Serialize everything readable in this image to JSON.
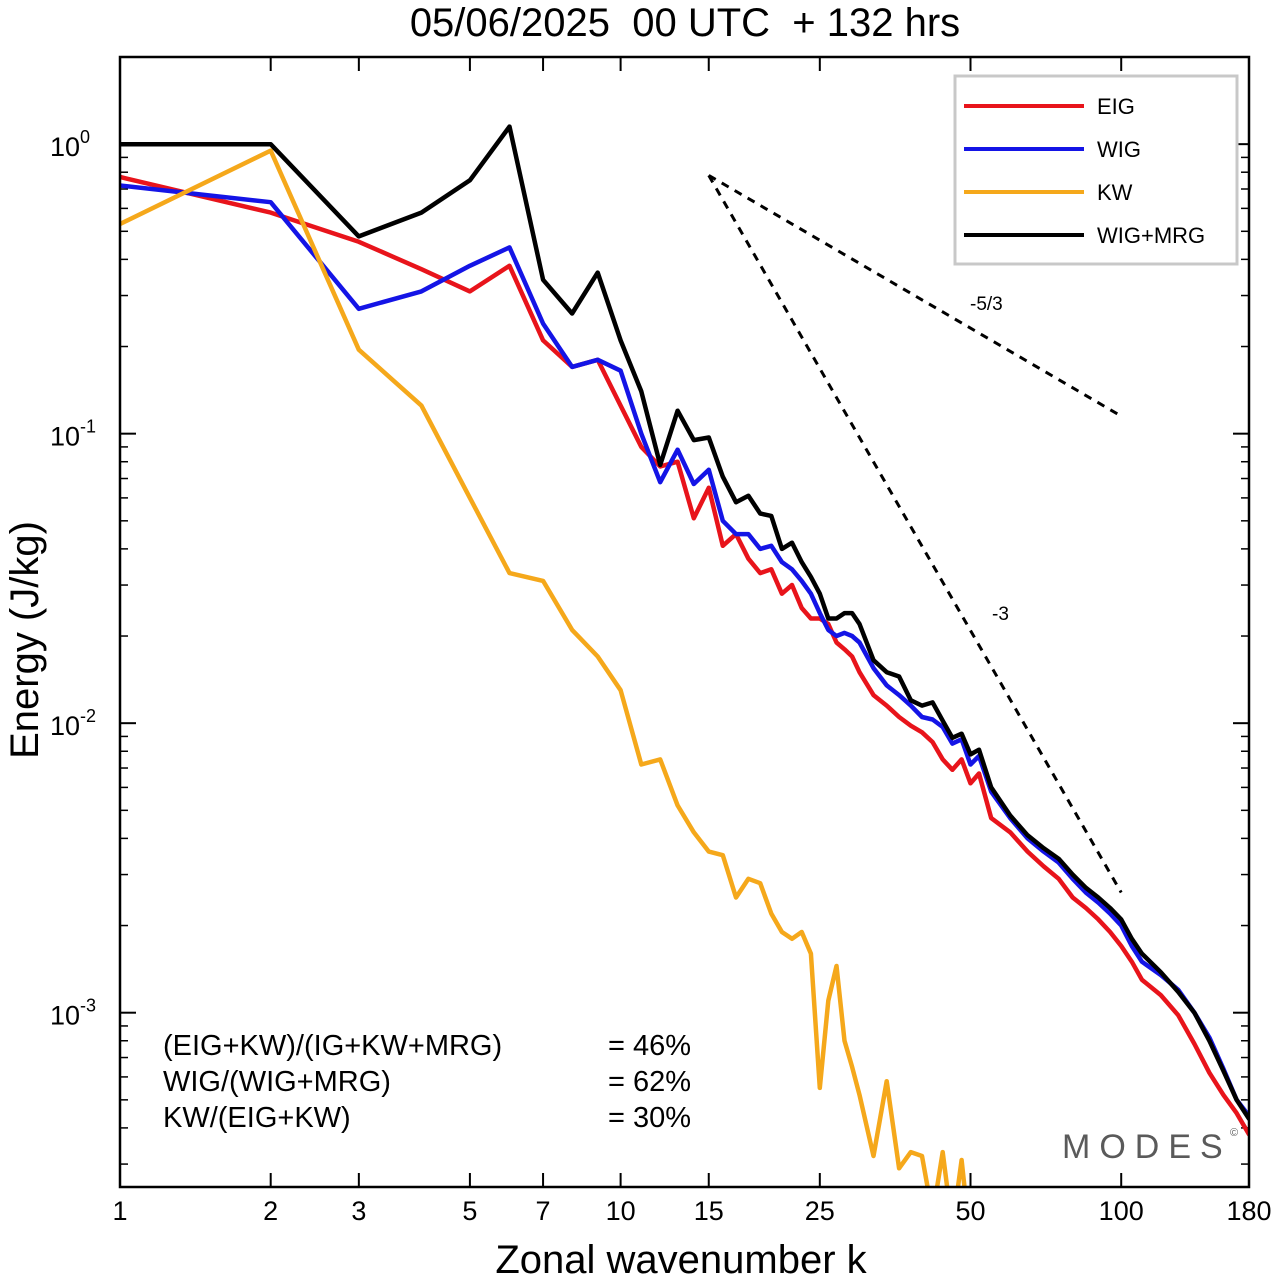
{
  "chart_data": {
    "type": "line",
    "title": "05/06/2025  00 UTC  + 132 hrs",
    "xlabel": "Zonal wavenumber k",
    "ylabel": "Energy (J/kg)",
    "x_scale": "log",
    "y_scale": "log",
    "xlim": [
      1,
      180
    ],
    "ylim": [
      0.00025,
      2
    ],
    "x_ticks": [
      1,
      2,
      3,
      5,
      7,
      10,
      15,
      25,
      50,
      100,
      180
    ],
    "x_tick_labels": [
      "1",
      "2",
      "3",
      "5",
      "7",
      "10",
      "15",
      "25",
      "50",
      "100",
      "180"
    ],
    "y_ticks": [
      {
        "value": 1,
        "base": "10",
        "exp": "0"
      },
      {
        "value": 0.1,
        "base": "10",
        "exp": "-1"
      },
      {
        "value": 0.01,
        "base": "10",
        "exp": "-2"
      },
      {
        "value": 0.001,
        "base": "10",
        "exp": "-3"
      }
    ],
    "grid": false,
    "legend_position": "top-right",
    "series": [
      {
        "name": "EIG",
        "color": "#e8141b",
        "points": [
          [
            1,
            0.77
          ],
          [
            2,
            0.58
          ],
          [
            3,
            0.46
          ],
          [
            4,
            0.37
          ],
          [
            5,
            0.31
          ],
          [
            6,
            0.38
          ],
          [
            7,
            0.21
          ],
          [
            8,
            0.17
          ],
          [
            9,
            0.18
          ],
          [
            10,
            0.125
          ],
          [
            11,
            0.09
          ],
          [
            12,
            0.077
          ],
          [
            13,
            0.08
          ],
          [
            14,
            0.051
          ],
          [
            15,
            0.065
          ],
          [
            16,
            0.041
          ],
          [
            17,
            0.045
          ],
          [
            18,
            0.037
          ],
          [
            19,
            0.033
          ],
          [
            20,
            0.034
          ],
          [
            21,
            0.028
          ],
          [
            22,
            0.03
          ],
          [
            23,
            0.025
          ],
          [
            24,
            0.023
          ],
          [
            25,
            0.023
          ],
          [
            26,
            0.022
          ],
          [
            27,
            0.019
          ],
          [
            28,
            0.018
          ],
          [
            29,
            0.017
          ],
          [
            30,
            0.015
          ],
          [
            32,
            0.0125
          ],
          [
            34,
            0.0115
          ],
          [
            36,
            0.0105
          ],
          [
            38,
            0.0098
          ],
          [
            40,
            0.0093
          ],
          [
            42,
            0.0086
          ],
          [
            44,
            0.0075
          ],
          [
            46,
            0.0069
          ],
          [
            48,
            0.0075
          ],
          [
            50,
            0.0062
          ],
          [
            52,
            0.0067
          ],
          [
            55,
            0.0047
          ],
          [
            60,
            0.0042
          ],
          [
            65,
            0.0036
          ],
          [
            70,
            0.0032
          ],
          [
            75,
            0.0029
          ],
          [
            80,
            0.0025
          ],
          [
            85,
            0.0023
          ],
          [
            90,
            0.0021
          ],
          [
            95,
            0.0019
          ],
          [
            100,
            0.0017
          ],
          [
            105,
            0.0015
          ],
          [
            110,
            0.0013
          ],
          [
            120,
            0.00115
          ],
          [
            130,
            0.00098
          ],
          [
            140,
            0.00078
          ],
          [
            150,
            0.00062
          ],
          [
            160,
            0.00052
          ],
          [
            170,
            0.00045
          ],
          [
            180,
            0.00038
          ]
        ]
      },
      {
        "name": "WIG",
        "color": "#1414e6",
        "points": [
          [
            1,
            0.72
          ],
          [
            2,
            0.63
          ],
          [
            3,
            0.27
          ],
          [
            4,
            0.31
          ],
          [
            5,
            0.38
          ],
          [
            6,
            0.44
          ],
          [
            7,
            0.24
          ],
          [
            8,
            0.17
          ],
          [
            9,
            0.18
          ],
          [
            10,
            0.165
          ],
          [
            11,
            0.1
          ],
          [
            12,
            0.068
          ],
          [
            13,
            0.088
          ],
          [
            14,
            0.067
          ],
          [
            15,
            0.075
          ],
          [
            16,
            0.05
          ],
          [
            17,
            0.045
          ],
          [
            18,
            0.045
          ],
          [
            19,
            0.04
          ],
          [
            20,
            0.041
          ],
          [
            21,
            0.036
          ],
          [
            22,
            0.034
          ],
          [
            23,
            0.031
          ],
          [
            24,
            0.028
          ],
          [
            25,
            0.024
          ],
          [
            26,
            0.021
          ],
          [
            27,
            0.02
          ],
          [
            28,
            0.0205
          ],
          [
            29,
            0.02
          ],
          [
            30,
            0.019
          ],
          [
            32,
            0.0155
          ],
          [
            34,
            0.0135
          ],
          [
            36,
            0.0125
          ],
          [
            38,
            0.0115
          ],
          [
            40,
            0.0105
          ],
          [
            42,
            0.0103
          ],
          [
            44,
            0.0097
          ],
          [
            46,
            0.0085
          ],
          [
            48,
            0.0088
          ],
          [
            50,
            0.0072
          ],
          [
            52,
            0.0077
          ],
          [
            55,
            0.0058
          ],
          [
            60,
            0.0047
          ],
          [
            65,
            0.004
          ],
          [
            70,
            0.0036
          ],
          [
            75,
            0.0033
          ],
          [
            80,
            0.0029
          ],
          [
            85,
            0.0026
          ],
          [
            90,
            0.0024
          ],
          [
            95,
            0.0022
          ],
          [
            100,
            0.002
          ],
          [
            105,
            0.0017
          ],
          [
            110,
            0.0015
          ],
          [
            120,
            0.00135
          ],
          [
            130,
            0.0012
          ],
          [
            140,
            0.001
          ],
          [
            150,
            0.00082
          ],
          [
            160,
            0.00064
          ],
          [
            170,
            0.0005
          ],
          [
            180,
            0.00044
          ]
        ]
      },
      {
        "name": "KW",
        "color": "#f5a81b",
        "points": [
          [
            1,
            0.53
          ],
          [
            2,
            0.95
          ],
          [
            3,
            0.195
          ],
          [
            4,
            0.125
          ],
          [
            5,
            0.06
          ],
          [
            6,
            0.033
          ],
          [
            7,
            0.031
          ],
          [
            8,
            0.021
          ],
          [
            9,
            0.017
          ],
          [
            10,
            0.013
          ],
          [
            11,
            0.0072
          ],
          [
            12,
            0.0075
          ],
          [
            13,
            0.0052
          ],
          [
            14,
            0.0042
          ],
          [
            15,
            0.0036
          ],
          [
            16,
            0.0035
          ],
          [
            17,
            0.0025
          ],
          [
            18,
            0.0029
          ],
          [
            19,
            0.0028
          ],
          [
            20,
            0.0022
          ],
          [
            21,
            0.0019
          ],
          [
            22,
            0.0018
          ],
          [
            23,
            0.0019
          ],
          [
            24,
            0.0016
          ],
          [
            25,
            0.00055
          ],
          [
            26,
            0.0011
          ],
          [
            27,
            0.00145
          ],
          [
            28,
            0.0008
          ],
          [
            29,
            0.00065
          ],
          [
            30,
            0.00052
          ],
          [
            32,
            0.00032
          ],
          [
            34,
            0.00058
          ],
          [
            36,
            0.00029
          ],
          [
            38,
            0.00033
          ],
          [
            40,
            0.00032
          ],
          [
            42,
            0.0002
          ],
          [
            44,
            0.00033
          ],
          [
            46,
            0.00018
          ],
          [
            48,
            0.00031
          ],
          [
            50,
            0.00016
          ]
        ]
      },
      {
        "name": "WIG+MRG",
        "color": "#000000",
        "points": [
          [
            1,
            1.0
          ],
          [
            2,
            1.0
          ],
          [
            3,
            0.48
          ],
          [
            4,
            0.58
          ],
          [
            5,
            0.75
          ],
          [
            6,
            1.15
          ],
          [
            7,
            0.34
          ],
          [
            8,
            0.26
          ],
          [
            9,
            0.36
          ],
          [
            10,
            0.21
          ],
          [
            11,
            0.14
          ],
          [
            12,
            0.078
          ],
          [
            13,
            0.12
          ],
          [
            14,
            0.095
          ],
          [
            15,
            0.097
          ],
          [
            16,
            0.071
          ],
          [
            17,
            0.058
          ],
          [
            18,
            0.061
          ],
          [
            19,
            0.053
          ],
          [
            20,
            0.052
          ],
          [
            21,
            0.04
          ],
          [
            22,
            0.042
          ],
          [
            23,
            0.036
          ],
          [
            24,
            0.032
          ],
          [
            25,
            0.028
          ],
          [
            26,
            0.023
          ],
          [
            27,
            0.023
          ],
          [
            28,
            0.024
          ],
          [
            29,
            0.024
          ],
          [
            30,
            0.022
          ],
          [
            32,
            0.0165
          ],
          [
            34,
            0.015
          ],
          [
            36,
            0.0145
          ],
          [
            38,
            0.012
          ],
          [
            40,
            0.0115
          ],
          [
            42,
            0.0118
          ],
          [
            44,
            0.0102
          ],
          [
            46,
            0.0089
          ],
          [
            48,
            0.0092
          ],
          [
            50,
            0.0078
          ],
          [
            52,
            0.0081
          ],
          [
            55,
            0.006
          ],
          [
            60,
            0.0048
          ],
          [
            65,
            0.0041
          ],
          [
            70,
            0.0037
          ],
          [
            75,
            0.0034
          ],
          [
            80,
            0.003
          ],
          [
            85,
            0.0027
          ],
          [
            90,
            0.0025
          ],
          [
            95,
            0.0023
          ],
          [
            100,
            0.0021
          ],
          [
            105,
            0.0018
          ],
          [
            110,
            0.0016
          ],
          [
            120,
            0.00138
          ],
          [
            130,
            0.00118
          ],
          [
            140,
            0.001
          ],
          [
            150,
            0.0008
          ],
          [
            160,
            0.00063
          ],
          [
            170,
            0.0005
          ],
          [
            180,
            0.00043
          ]
        ]
      }
    ],
    "reference_lines": [
      {
        "label": "-5/3",
        "points": [
          [
            15,
            0.78
          ],
          [
            100,
            0.115
          ]
        ]
      },
      {
        "label": "-3",
        "points": [
          [
            15,
            0.78
          ],
          [
            100,
            0.0026
          ]
        ]
      }
    ],
    "stats": [
      {
        "label": "(EIG+KW)/(IG+KW+MRG)",
        "value": "= 46%"
      },
      {
        "label": "WIG/(WIG+MRG)",
        "value": "= 62%"
      },
      {
        "label": "KW/(EIG+KW)",
        "value": "= 30%"
      }
    ],
    "watermark": "MODES",
    "watermark_mark": "©"
  }
}
